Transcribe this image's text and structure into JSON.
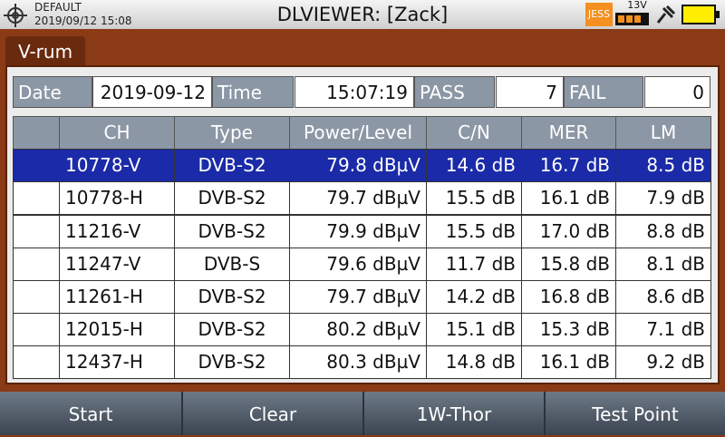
{
  "status_bar": {
    "profile": "DEFAULT",
    "datetime": "2019/09/12 15:08",
    "title": "DLVIEWER: [Zack]",
    "badge": "JESS",
    "voltage": "13V"
  },
  "tab": "V-rum",
  "summary": {
    "date_label": "Date",
    "date": "2019-09-12",
    "time_label": "Time",
    "time": "15:07:19",
    "pass_label": "PASS",
    "pass": 7,
    "fail_label": "FAIL",
    "fail": 0
  },
  "table": {
    "columns": [
      "CH",
      "Type",
      "Power/Level",
      "C/N",
      "MER",
      "LM"
    ],
    "rows": [
      [
        "10778-V",
        "DVB-S2",
        "79.8 dBµV",
        "14.6 dB",
        "16.7 dB",
        "8.5 dB"
      ],
      [
        "10778-H",
        "DVB-S2",
        "79.7 dBµV",
        "15.5 dB",
        "16.1 dB",
        "7.9 dB"
      ],
      [
        "11216-V",
        "DVB-S2",
        "79.9 dBµV",
        "15.5 dB",
        "17.0 dB",
        "8.8 dB"
      ],
      [
        "11247-V",
        "DVB-S",
        "79.6 dBµV",
        "11.7 dB",
        "15.8 dB",
        "8.1 dB"
      ],
      [
        "11261-H",
        "DVB-S2",
        "79.7 dBµV",
        "14.2 dB",
        "16.8 dB",
        "8.6 dB"
      ],
      [
        "12015-H",
        "DVB-S2",
        "80.2 dBµV",
        "15.1 dB",
        "15.3 dB",
        "7.1 dB"
      ],
      [
        "12437-H",
        "DVB-S2",
        "80.3 dBµV",
        "14.8 dB",
        "16.1 dB",
        "9.2 dB"
      ]
    ],
    "selected_row": 0
  },
  "softkeys": [
    "Start",
    "Clear",
    "1W-Thor",
    "Test Point"
  ]
}
